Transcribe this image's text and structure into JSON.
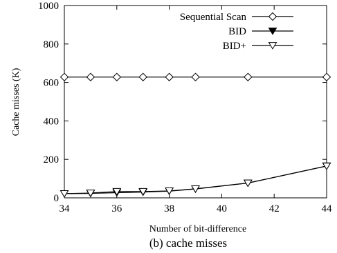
{
  "chart_data": {
    "type": "line",
    "xlabel": "Number of bit-difference",
    "ylabel": "Cache misses (K)",
    "caption": "(b) cache misses",
    "xlim": [
      34,
      44
    ],
    "ylim": [
      0,
      1000
    ],
    "xticks": [
      "34",
      "36",
      "38",
      "40",
      "42",
      "44"
    ],
    "yticks": [
      "0",
      "200",
      "400",
      "600",
      "800",
      "1000"
    ],
    "legend_position": "top-right",
    "grid": false,
    "series": [
      {
        "name": "Sequential Scan",
        "marker": "open-diamond",
        "x": [
          34,
          35,
          36,
          37,
          38,
          39,
          41,
          44
        ],
        "y": [
          628,
          628,
          628,
          628,
          628,
          628,
          628,
          628
        ]
      },
      {
        "name": "BID",
        "marker": "filled-down-triangle",
        "x": [
          34,
          35,
          36,
          37,
          38,
          39,
          41,
          44
        ],
        "y": [
          22,
          23,
          27,
          30,
          35,
          46,
          77,
          166
        ]
      },
      {
        "name": "BID+",
        "marker": "open-down-triangle",
        "x": [
          34,
          35,
          36,
          37,
          38,
          39,
          41,
          44
        ],
        "y": [
          22,
          25,
          33,
          33,
          36,
          47,
          77,
          165
        ]
      }
    ]
  }
}
